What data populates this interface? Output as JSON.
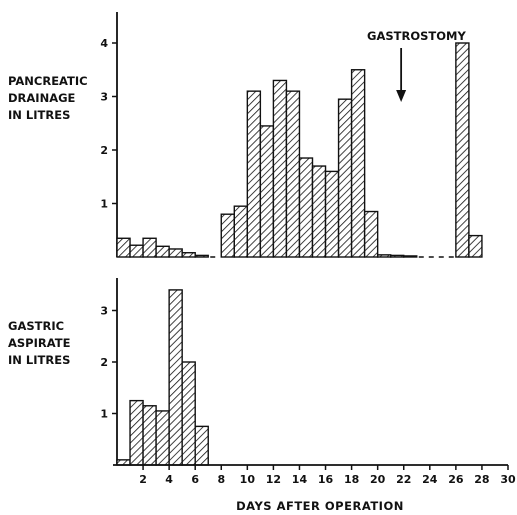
{
  "chart_data": [
    {
      "type": "bar",
      "ylabel": [
        "PANCREATIC",
        "DRAINAGE",
        "IN LITRES"
      ],
      "xlabel": "DAYS AFTER OPERATION",
      "xlim": [
        0,
        30
      ],
      "ylim": [
        0,
        4.4
      ],
      "yticks": [
        "1",
        "2",
        "3",
        "4"
      ],
      "x_tick_values": [
        2,
        4,
        6,
        8,
        10,
        12,
        14,
        16,
        18,
        20,
        22,
        24,
        26,
        28,
        30
      ],
      "bin_width_days": 1,
      "series": [
        {
          "bars": [
            {
              "day": 0,
              "value": 0.35
            },
            {
              "day": 1,
              "value": 0.22
            },
            {
              "day": 2,
              "value": 0.35
            },
            {
              "day": 3,
              "value": 0.2
            },
            {
              "day": 4,
              "value": 0.15
            },
            {
              "day": 5,
              "value": 0.08
            },
            {
              "day": 6,
              "value": 0.03
            },
            {
              "day": 8,
              "value": 0.8
            },
            {
              "day": 9,
              "value": 0.95
            },
            {
              "day": 10,
              "value": 3.1
            },
            {
              "day": 11,
              "value": 2.45
            },
            {
              "day": 12,
              "value": 3.3
            },
            {
              "day": 13,
              "value": 3.1
            },
            {
              "day": 14,
              "value": 1.85
            },
            {
              "day": 15,
              "value": 1.7
            },
            {
              "day": 16,
              "value": 1.6
            },
            {
              "day": 17,
              "value": 2.95
            },
            {
              "day": 18,
              "value": 3.5
            },
            {
              "day": 19,
              "value": 0.85
            },
            {
              "day": 20,
              "value": 0.04
            },
            {
              "day": 21,
              "value": 0.03
            },
            {
              "day": 22,
              "value": 0.02
            },
            {
              "day": 26,
              "value": 4.0
            },
            {
              "day": 27,
              "value": 0.4
            }
          ]
        }
      ],
      "dashed_gaps": [
        [
          7,
          8
        ],
        [
          23,
          26
        ]
      ],
      "annotation": {
        "text": "GASTROSTOMY",
        "arrow_day": 21.8
      }
    },
    {
      "type": "bar",
      "ylabel": [
        "GASTRIC",
        "ASPIRATE",
        "IN LITRES"
      ],
      "xlabel": "DAYS AFTER OPERATION",
      "xlim": [
        0,
        30
      ],
      "ylim": [
        0,
        3.6
      ],
      "yticks": [
        "1",
        "2",
        "3"
      ],
      "x_tick_labels": [
        "2",
        "4",
        "6",
        "8",
        "10",
        "12",
        "14",
        "16",
        "18",
        "20",
        "22",
        "24",
        "26",
        "28",
        "30"
      ],
      "bin_width_days": 1,
      "series": [
        {
          "bars": [
            {
              "day": 0,
              "value": 0.1
            },
            {
              "day": 1,
              "value": 1.25
            },
            {
              "day": 2,
              "value": 1.15
            },
            {
              "day": 3,
              "value": 1.05
            },
            {
              "day": 4,
              "value": 3.4
            },
            {
              "day": 5,
              "value": 2.0
            },
            {
              "day": 6,
              "value": 0.75
            }
          ]
        }
      ]
    }
  ]
}
